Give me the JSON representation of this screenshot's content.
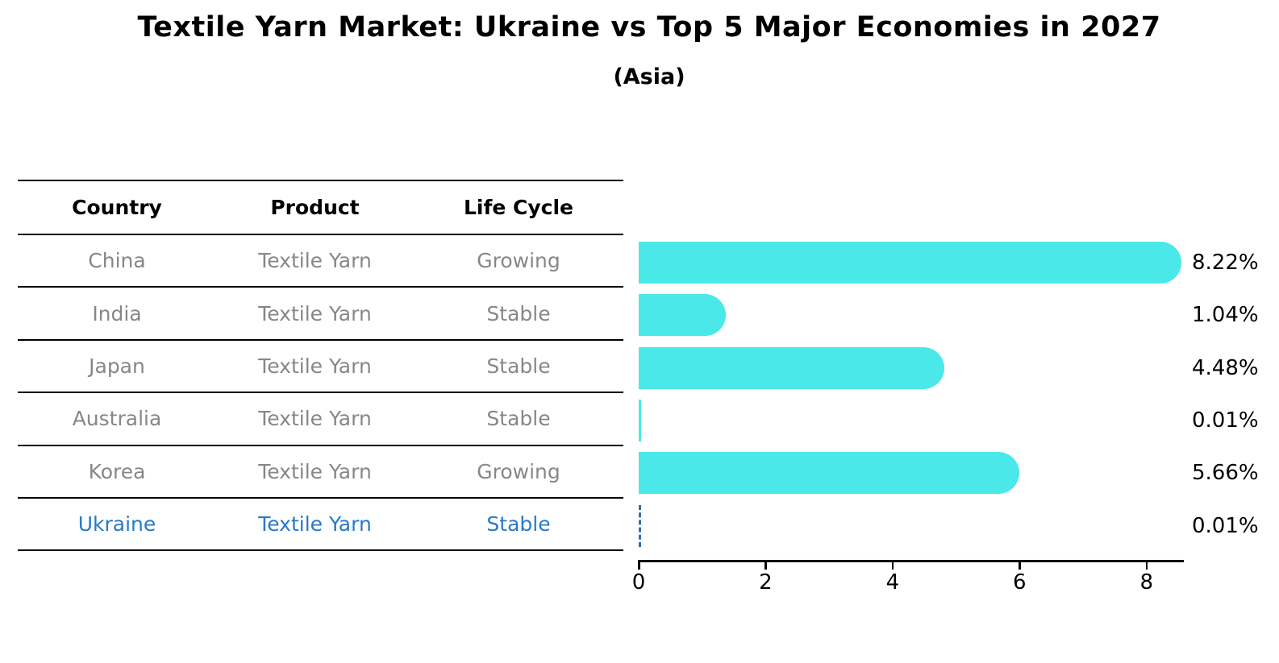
{
  "header": {
    "title": "Textile Yarn Market: Ukraine vs Top 5 Major Economies in 2027",
    "subtitle": "(Asia)"
  },
  "table": {
    "columns": [
      "Country",
      "Product",
      "Life Cycle"
    ],
    "rows": [
      {
        "country": "China",
        "product": "Textile Yarn",
        "life_cycle": "Growing"
      },
      {
        "country": "India",
        "product": "Textile Yarn",
        "life_cycle": "Stable"
      },
      {
        "country": "Japan",
        "product": "Textile Yarn",
        "life_cycle": "Stable"
      },
      {
        "country": "Australia",
        "product": "Textile Yarn",
        "life_cycle": "Stable"
      },
      {
        "country": "Korea",
        "product": "Textile Yarn",
        "life_cycle": "Growing"
      },
      {
        "country": "Ukraine",
        "product": "Textile Yarn",
        "life_cycle": "Stable"
      }
    ],
    "highlight_row_index": 5
  },
  "chart_data": {
    "type": "bar",
    "orientation": "horizontal",
    "title": "Textile Yarn Market: Ukraine vs Top 5 Major Economies in 2027",
    "subtitle": "(Asia)",
    "categories": [
      "China",
      "India",
      "Japan",
      "Australia",
      "Korea",
      "Ukraine"
    ],
    "values": [
      8.22,
      1.04,
      4.48,
      0.01,
      5.66,
      0.01
    ],
    "value_labels": [
      "8.22%",
      "1.04%",
      "4.48%",
      "0.01%",
      "5.66%",
      "0.01%"
    ],
    "x_ticks": [
      0,
      2,
      4,
      6,
      8
    ],
    "x_tick_labels": [
      "0",
      "2",
      "4",
      "6",
      "8"
    ],
    "xlim": [
      0,
      8.6
    ],
    "xlabel": "",
    "ylabel": "",
    "grid": false,
    "legend": false,
    "bar_color": "#4ae8e8",
    "highlight_index": 5,
    "highlight_color": "#2979c9"
  },
  "colors": {
    "background": "#ffffff",
    "table_text": "#878787",
    "table_line": "#000000",
    "axis_line": "#000000",
    "title_text": "#000000",
    "bar_cyan": "#4ae8e8",
    "highlight_blue": "#2979c9"
  }
}
